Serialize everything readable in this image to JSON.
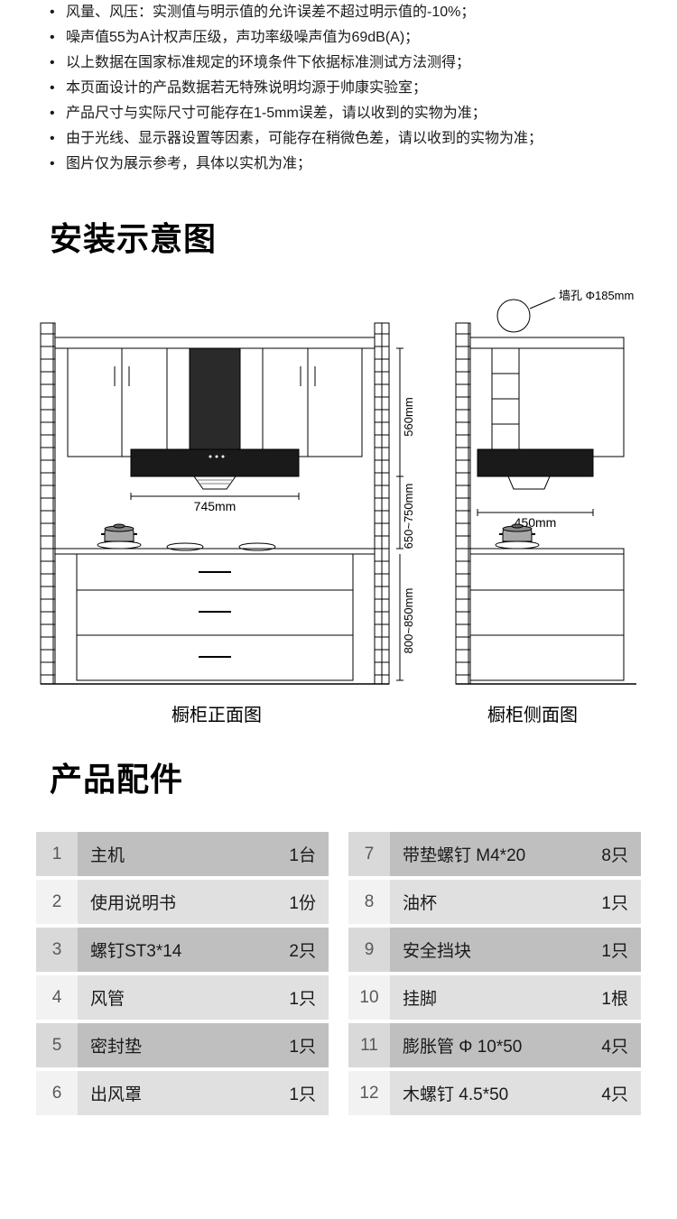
{
  "notes": [
    "风量、风压：实测值与明示值的允许误差不超过明示值的-10%；",
    "噪声值55为A计权声压级，声功率级噪声值为69dB(A)；",
    "以上数据在国家标准规定的环境条件下依据标准测试方法测得；",
    "本页面设计的产品数据若无特殊说明均源于帅康实验室；",
    "产品尺寸与实际尺寸可能存在1-5mm误差，请以收到的实物为准；",
    "由于光线、显示器设置等因素，可能存在稍微色差，请以收到的实物为准；",
    "图片仅为展示参考，具体以实机为准；"
  ],
  "sections": {
    "install": "安装示意图",
    "parts": "产品配件"
  },
  "diagram": {
    "front_label": "橱柜正面图",
    "side_label": "橱柜侧面图",
    "wall_hole": "墙孔 Φ185mm",
    "width_hood": "745mm",
    "h_hood": "560mm",
    "h_counter_to_hood": "650~750mm",
    "h_floor_to_counter": "800~850mm",
    "depth": "450mm",
    "colors": {
      "line": "#000000",
      "hood_dark": "#1a1a1a",
      "hood_med": "#3a3a3a",
      "pot": "#808080",
      "brick": "#ffffff"
    }
  },
  "parts_left": [
    {
      "n": "1",
      "name": "主机",
      "qty": "1台"
    },
    {
      "n": "2",
      "name": "使用说明书",
      "qty": "1份"
    },
    {
      "n": "3",
      "name": "螺钉ST3*14",
      "qty": "2只"
    },
    {
      "n": "4",
      "name": "风管",
      "qty": "1只"
    },
    {
      "n": "5",
      "name": "密封垫",
      "qty": "1只"
    },
    {
      "n": "6",
      "name": "出风罩",
      "qty": "1只"
    }
  ],
  "parts_right": [
    {
      "n": "7",
      "name": "带垫螺钉 M4*20",
      "qty": "8只"
    },
    {
      "n": "8",
      "name": "油杯",
      "qty": "1只"
    },
    {
      "n": "9",
      "name": "安全挡块",
      "qty": "1只"
    },
    {
      "n": "10",
      "name": "挂脚",
      "qty": "1根"
    },
    {
      "n": "11",
      "name": "膨胀管 Φ 10*50",
      "qty": "4只"
    },
    {
      "n": "12",
      "name": "木螺钉 4.5*50",
      "qty": "4只"
    }
  ],
  "style": {
    "row_odd_num_bg": "#d9d9d9",
    "row_odd_name_bg": "#bfbfbf",
    "row_even_num_bg": "#f2f2f2",
    "row_even_name_bg": "#e0e0e0",
    "title_fontsize": 36,
    "body_fontsize": 16,
    "table_fontsize": 19
  }
}
